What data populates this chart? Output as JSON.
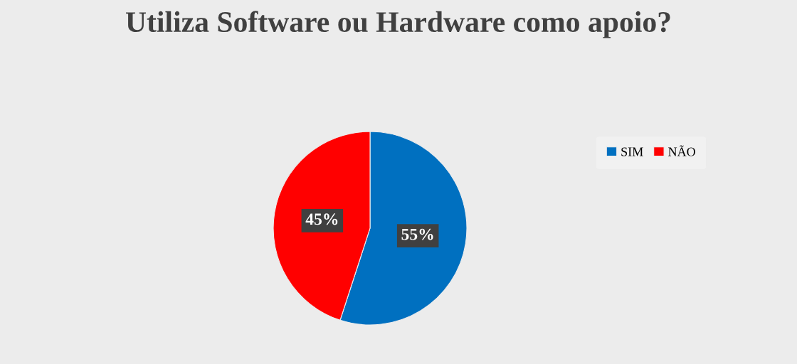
{
  "chart_data": {
    "type": "pie",
    "title": "Utiliza Software ou Hardware como apoio?",
    "categories": [
      "SIM",
      "NÃO"
    ],
    "values": [
      55,
      45
    ],
    "colors": [
      "#0070c0",
      "#ff0000"
    ],
    "value_labels": [
      "55%",
      "45%"
    ],
    "legend": "right"
  }
}
